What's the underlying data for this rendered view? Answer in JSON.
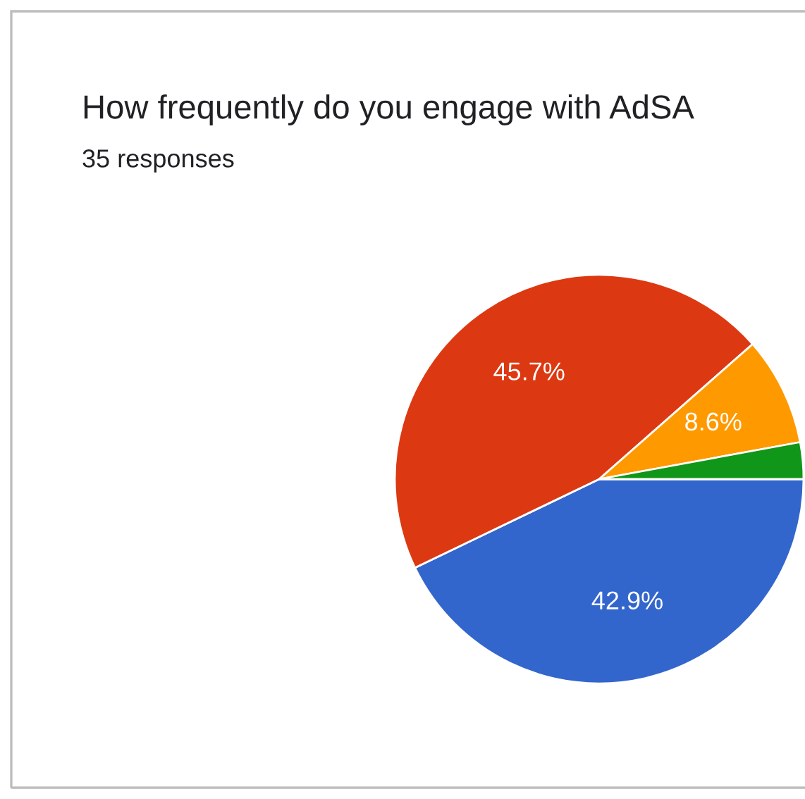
{
  "chart_data": {
    "type": "pie",
    "title": "How frequently do you engage with AdSA",
    "subtitle": "35 responses",
    "categories": [
      null,
      null,
      null,
      null
    ],
    "values": [
      42.9,
      45.7,
      8.6,
      2.9
    ],
    "colors": [
      "#3366cc",
      "#dc3912",
      "#ff9900",
      "#109618"
    ],
    "value_labels": [
      "42.9%",
      "45.7%",
      "8.6%",
      null
    ],
    "legend": false
  }
}
